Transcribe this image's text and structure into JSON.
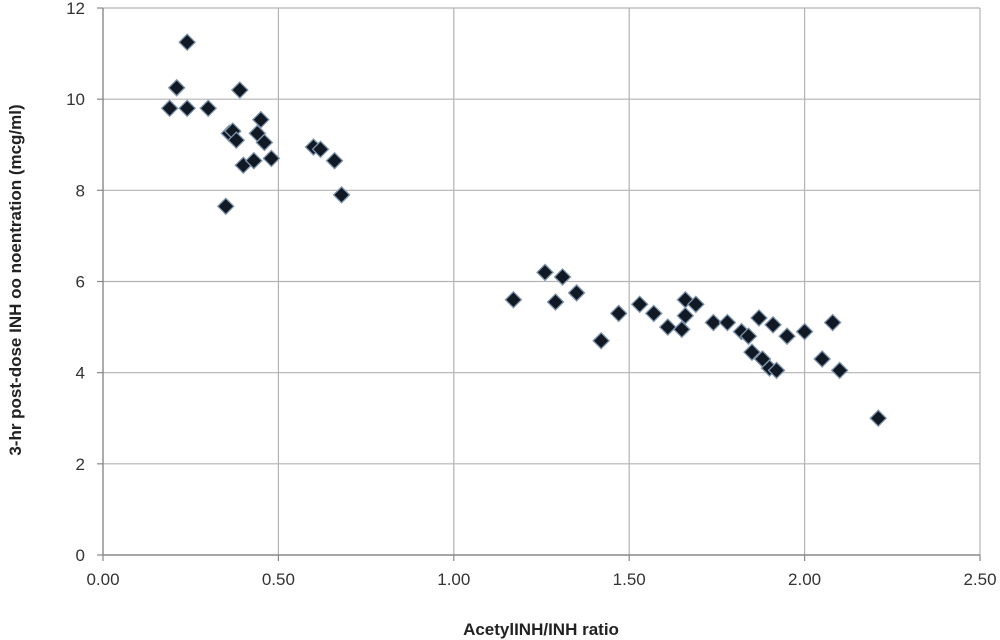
{
  "chart_data": {
    "type": "scatter",
    "title": "",
    "xlabel": "AcetylINH/INH ratio",
    "ylabel": "3-hr post-dose INH oo noentration (mcg/ml)",
    "xlim": [
      0,
      2.5
    ],
    "ylim": [
      0,
      12
    ],
    "xticks": [
      "0.00",
      "0.50",
      "1.00",
      "1.50",
      "2.00",
      "2.50"
    ],
    "yticks": [
      "0",
      "2",
      "4",
      "6",
      "8",
      "10",
      "12"
    ],
    "grid": true,
    "legend": "none",
    "marker": "diamond",
    "colors": {
      "marker": "#111a24",
      "marker_edge": "#7f95ad",
      "grid": "#b3b3b3",
      "axis": "#888888"
    },
    "series": [
      {
        "points": [
          {
            "x": 0.19,
            "y": 9.8
          },
          {
            "x": 0.21,
            "y": 10.25
          },
          {
            "x": 0.24,
            "y": 11.25
          },
          {
            "x": 0.24,
            "y": 9.8
          },
          {
            "x": 0.3,
            "y": 9.8
          },
          {
            "x": 0.35,
            "y": 7.65
          },
          {
            "x": 0.36,
            "y": 9.25
          },
          {
            "x": 0.37,
            "y": 9.3
          },
          {
            "x": 0.38,
            "y": 9.1
          },
          {
            "x": 0.39,
            "y": 10.2
          },
          {
            "x": 0.4,
            "y": 8.55
          },
          {
            "x": 0.43,
            "y": 8.65
          },
          {
            "x": 0.44,
            "y": 9.25
          },
          {
            "x": 0.45,
            "y": 9.55
          },
          {
            "x": 0.46,
            "y": 9.05
          },
          {
            "x": 0.48,
            "y": 8.7
          },
          {
            "x": 0.6,
            "y": 8.95
          },
          {
            "x": 0.62,
            "y": 8.9
          },
          {
            "x": 0.66,
            "y": 8.65
          },
          {
            "x": 0.68,
            "y": 7.9
          },
          {
            "x": 1.17,
            "y": 5.6
          },
          {
            "x": 1.26,
            "y": 6.2
          },
          {
            "x": 1.29,
            "y": 5.55
          },
          {
            "x": 1.31,
            "y": 6.1
          },
          {
            "x": 1.35,
            "y": 5.75
          },
          {
            "x": 1.42,
            "y": 4.7
          },
          {
            "x": 1.47,
            "y": 5.3
          },
          {
            "x": 1.53,
            "y": 5.5
          },
          {
            "x": 1.57,
            "y": 5.3
          },
          {
            "x": 1.61,
            "y": 5.0
          },
          {
            "x": 1.65,
            "y": 4.95
          },
          {
            "x": 1.66,
            "y": 5.25
          },
          {
            "x": 1.66,
            "y": 5.6
          },
          {
            "x": 1.69,
            "y": 5.5
          },
          {
            "x": 1.74,
            "y": 5.1
          },
          {
            "x": 1.78,
            "y": 5.1
          },
          {
            "x": 1.82,
            "y": 4.9
          },
          {
            "x": 1.84,
            "y": 4.8
          },
          {
            "x": 1.85,
            "y": 4.45
          },
          {
            "x": 1.87,
            "y": 5.2
          },
          {
            "x": 1.88,
            "y": 4.3
          },
          {
            "x": 1.9,
            "y": 4.1
          },
          {
            "x": 1.91,
            "y": 5.05
          },
          {
            "x": 1.92,
            "y": 4.05
          },
          {
            "x": 1.95,
            "y": 4.8
          },
          {
            "x": 2.0,
            "y": 4.9
          },
          {
            "x": 2.05,
            "y": 4.3
          },
          {
            "x": 2.08,
            "y": 5.1
          },
          {
            "x": 2.1,
            "y": 4.05
          },
          {
            "x": 2.21,
            "y": 3.0
          }
        ]
      }
    ]
  }
}
